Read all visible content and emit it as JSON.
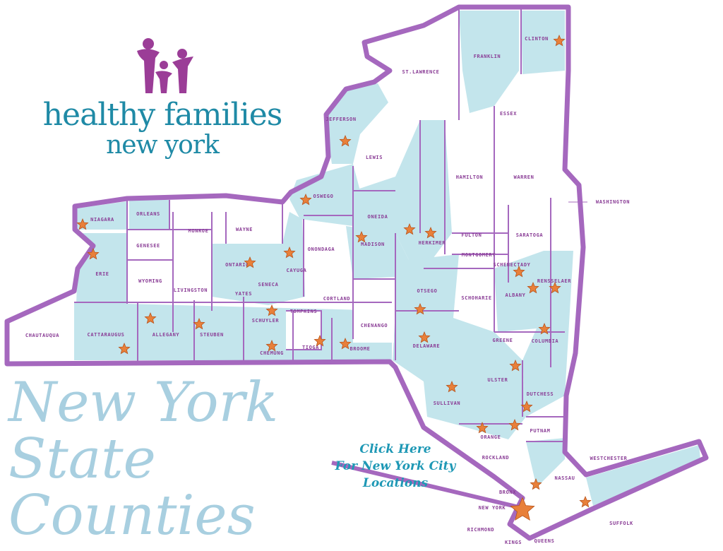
{
  "logo": {
    "line1": "healthy families",
    "line2": "new york",
    "icon": "family-figures-icon"
  },
  "watermark": "New York State Counties",
  "nyc_link": {
    "line1": "Click Here",
    "line2": "For New York City",
    "line3": "Locations"
  },
  "colors": {
    "border": "#a568be",
    "served_fill": "#c3e5ec",
    "unserved_fill": "#ffffff",
    "label": "#8a3d96",
    "star": "#e8803a",
    "logo_text": "#1f8aa6",
    "logo_figures": "#9b3d97"
  },
  "marker_icon": "star-icon",
  "counties": [
    "Franklin",
    "Clinton",
    "St.Lawrence",
    "Essex",
    "Jefferson",
    "Lewis",
    "Hamilton",
    "Warren",
    "Washington",
    "Oswego",
    "Oneida",
    "Herkimer",
    "Fulton",
    "Saratoga",
    "Montgomery",
    "Schenectady",
    "Rensselaer",
    "Albany",
    "Schoharie",
    "Otsego",
    "Chenango",
    "Madison",
    "Onondaga",
    "Cortland",
    "Tompkins",
    "Cayuga",
    "Seneca",
    "Yates",
    "Ontario",
    "Wayne",
    "Monroe",
    "Genesee",
    "Wyoming",
    "Livingston",
    "Orleans",
    "Niagara",
    "Erie",
    "Chautauqua",
    "Cattaraugus",
    "Allegany",
    "Steuben",
    "Schuyler",
    "Chemung",
    "Tioga",
    "Broome",
    "Delaware",
    "Greene",
    "Columbia",
    "Ulster",
    "Sullivan",
    "Dutchess",
    "Orange",
    "Putnam",
    "Westchester",
    "Rockland",
    "Nassau",
    "Bronx",
    "New York",
    "Richmond",
    "Kings",
    "Queens",
    "Suffolk"
  ]
}
